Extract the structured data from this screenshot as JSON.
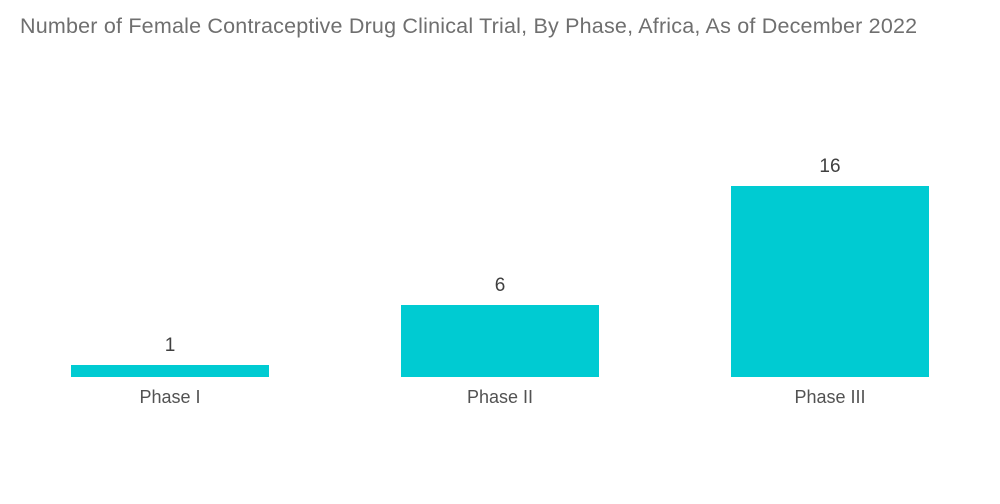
{
  "title": "Number of Female Contraceptive Drug Clinical Trial, By Phase, Africa, As of December 2022",
  "colors": {
    "background": "#FFFFFF",
    "bar": "#00CBD2",
    "title_text": "#6F6F6F",
    "value_label_text": "#404040",
    "category_label_text": "#525252"
  },
  "chart_data": {
    "type": "bar",
    "title": "Number of Female Contraceptive Drug Clinical Trial, By Phase, Africa, As of December 2022",
    "categories": [
      "Phase I",
      "Phase II",
      "Phase III"
    ],
    "values": [
      1,
      6,
      16
    ],
    "data_labels": [
      "1",
      "6",
      "16"
    ],
    "xlabel": "",
    "ylabel": "",
    "ylim": [
      0,
      16
    ],
    "grid": false,
    "legend": "none",
    "axes_visible": false,
    "bar_color": "#00CBD2"
  }
}
